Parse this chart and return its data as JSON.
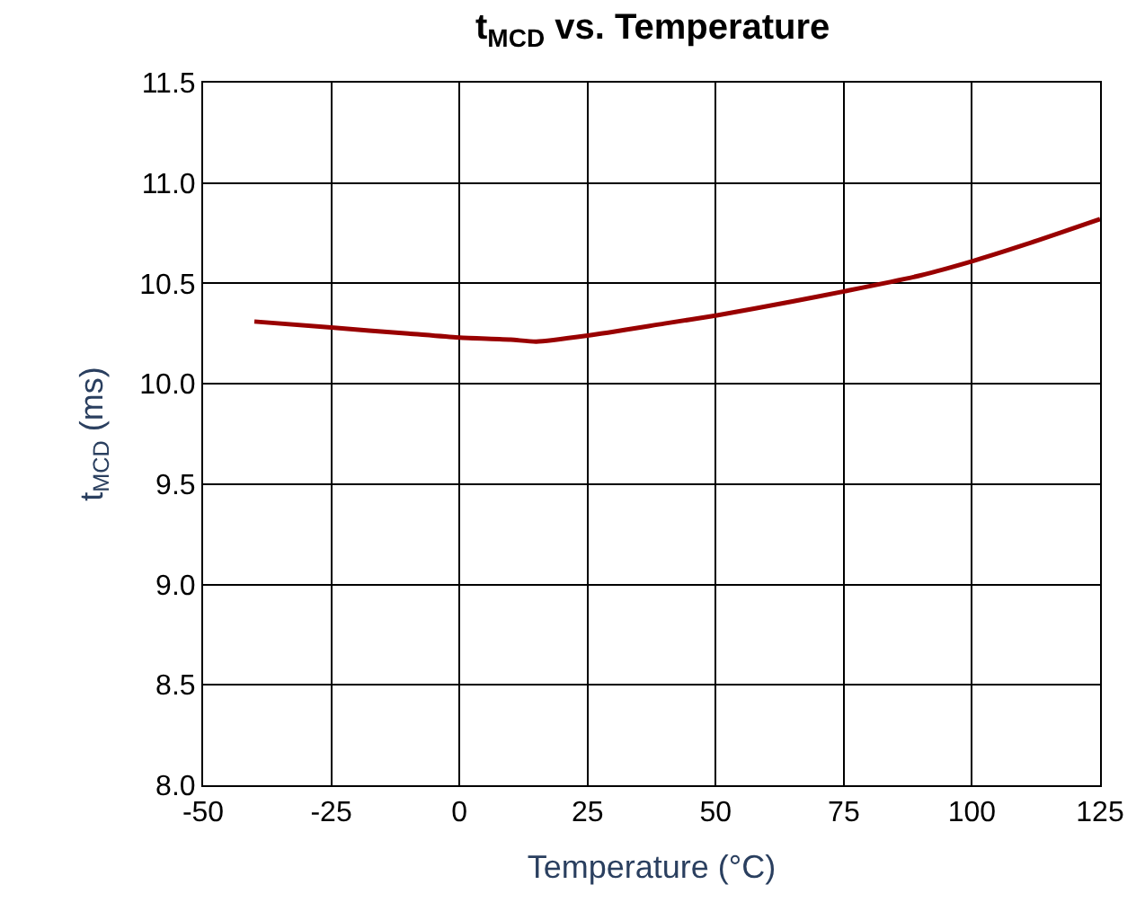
{
  "chart_data": {
    "type": "line",
    "title": "t$_{MCD}$ vs. Temperature",
    "xlabel": "Temperature (°C)",
    "ylabel": "t$_{MCD}$ (ms)",
    "series": [
      {
        "color": "#990000",
        "x": [
          -40,
          -25,
          -10,
          0,
          10,
          15,
          25,
          40,
          50,
          65,
          75,
          90,
          100,
          110,
          125
        ],
        "values": [
          10.31,
          10.28,
          10.25,
          10.23,
          10.22,
          10.21,
          10.24,
          10.3,
          10.34,
          10.41,
          10.46,
          10.54,
          10.61,
          10.69,
          10.82
        ]
      }
    ],
    "xlim": [
      -50,
      125
    ],
    "xticks": [
      -50,
      -25,
      0,
      25,
      50,
      75,
      100,
      125
    ],
    "ylim": [
      8.0,
      11.5
    ],
    "yticks": [
      {
        "value": 8.0,
        "label": "8.0"
      },
      {
        "value": 8.5,
        "label": "8.5"
      },
      {
        "value": 9.0,
        "label": "9.0"
      },
      {
        "value": 9.5,
        "label": "9.5"
      },
      {
        "value": 10.0,
        "label": "10.0"
      },
      {
        "value": 10.5,
        "label": "10.5"
      },
      {
        "value": 11.0,
        "label": "11.0"
      },
      {
        "value": 11.5,
        "label": "11.5"
      }
    ],
    "grid": true,
    "legend": false,
    "marker": "none",
    "line_style": "solid"
  }
}
